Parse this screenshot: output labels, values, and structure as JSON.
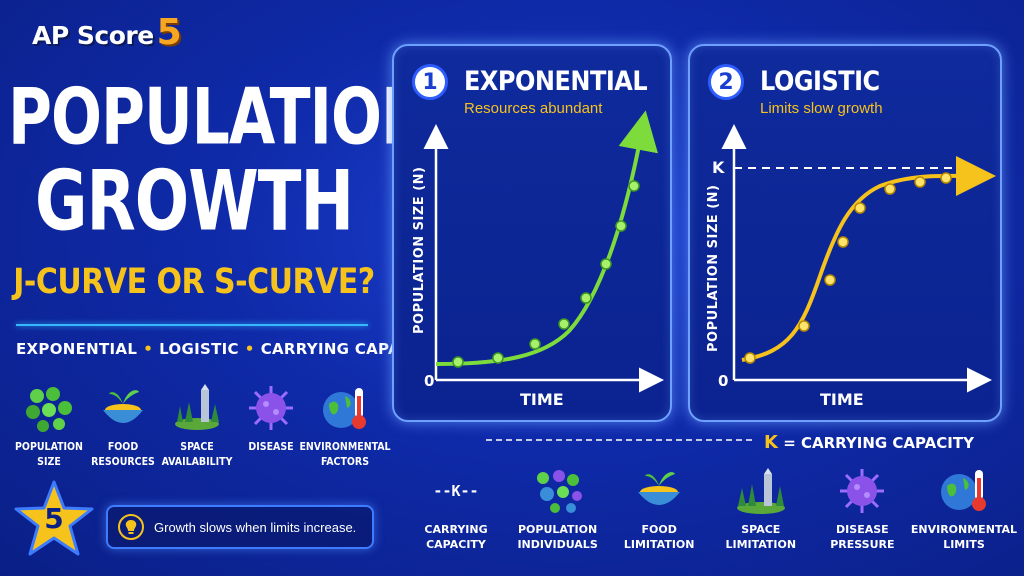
{
  "brand": {
    "text": "AP Score",
    "number": "5"
  },
  "title": {
    "line1": "POPULATION",
    "line2": "GROWTH",
    "subtitle": "J-CURVE OR S-CURVE?"
  },
  "keywords": [
    "EXPONENTIAL",
    "LOGISTIC",
    "CARRYING CAPACITY"
  ],
  "keyword_separator": "•",
  "left_factors": [
    {
      "icon": "population-dots-icon",
      "label_1": "POPULATION",
      "label_2": "SIZE"
    },
    {
      "icon": "food-bowl-icon",
      "label_1": "FOOD",
      "label_2": "RESOURCES"
    },
    {
      "icon": "forest-space-icon",
      "label_1": "SPACE",
      "label_2": "AVAILABILITY"
    },
    {
      "icon": "virus-icon",
      "label_1": "DISEASE",
      "label_2": ""
    },
    {
      "icon": "globe-thermometer-icon",
      "label_1": "ENVIRONMENTAL",
      "label_2": "FACTORS"
    }
  ],
  "star_number": "5",
  "tip": {
    "icon": "lightbulb-icon",
    "text": "Growth slows when limits increase."
  },
  "panels": [
    {
      "number": "1",
      "title": "EXPONENTIAL",
      "subtitle": "Resources abundant",
      "y_label": "POPULATION SIZE (N)",
      "x_label": "TIME",
      "origin": "0",
      "curve_color": "#7ddc3c",
      "type": "exponential"
    },
    {
      "number": "2",
      "title": "LOGISTIC",
      "subtitle": "Limits slow growth",
      "y_label": "POPULATION SIZE (N)",
      "x_label": "TIME",
      "origin": "0",
      "k_label": "K",
      "curve_color": "#f6c21c",
      "type": "logistic"
    }
  ],
  "k_legend": {
    "k": "K",
    "text": "= CARRYING CAPACITY"
  },
  "bottom_factors": [
    {
      "icon": "k-dash-icon",
      "symbol": "--K--",
      "label_1": "CARRYING",
      "label_2": "CAPACITY"
    },
    {
      "icon": "population-dots-icon",
      "label_1": "POPULATION",
      "label_2": "INDIVIDUALS"
    },
    {
      "icon": "food-bowl-icon",
      "label_1": "FOOD",
      "label_2": "LIMITATION"
    },
    {
      "icon": "forest-space-icon",
      "label_1": "SPACE",
      "label_2": "LIMITATION"
    },
    {
      "icon": "virus-icon",
      "label_1": "DISEASE",
      "label_2": "PRESSURE"
    },
    {
      "icon": "globe-thermometer-icon",
      "label_1": "ENVIRONMENTAL",
      "label_2": "LIMITS"
    }
  ],
  "colors": {
    "background": "#0f2aa8",
    "accent_yellow": "#f6c21c",
    "accent_orange": "#f6a623",
    "green": "#7ddc3c",
    "cyan": "#35b8ff"
  }
}
